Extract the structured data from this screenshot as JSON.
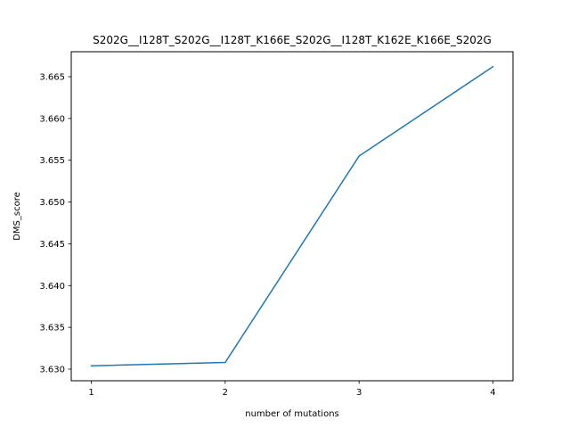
{
  "chart_data": {
    "type": "line",
    "title": "S202G__I128T_S202G__I128T_K166E_S202G__I128T_K162E_K166E_S202G",
    "xlabel": "number of mutations",
    "ylabel": "DMS_score",
    "x": [
      1,
      2,
      3,
      4
    ],
    "series": [
      {
        "values": [
          3.6304,
          3.6308,
          3.6555,
          3.6662
        ]
      }
    ],
    "xticks": [
      "1",
      "2",
      "3",
      "4"
    ],
    "yticks": [
      "3.630",
      "3.635",
      "3.640",
      "3.645",
      "3.650",
      "3.655",
      "3.660",
      "3.665"
    ],
    "xlim": [
      0.85,
      4.15
    ],
    "ylim": [
      3.62861,
      3.66799
    ],
    "grid": false,
    "line_color": "#1f77b4"
  }
}
